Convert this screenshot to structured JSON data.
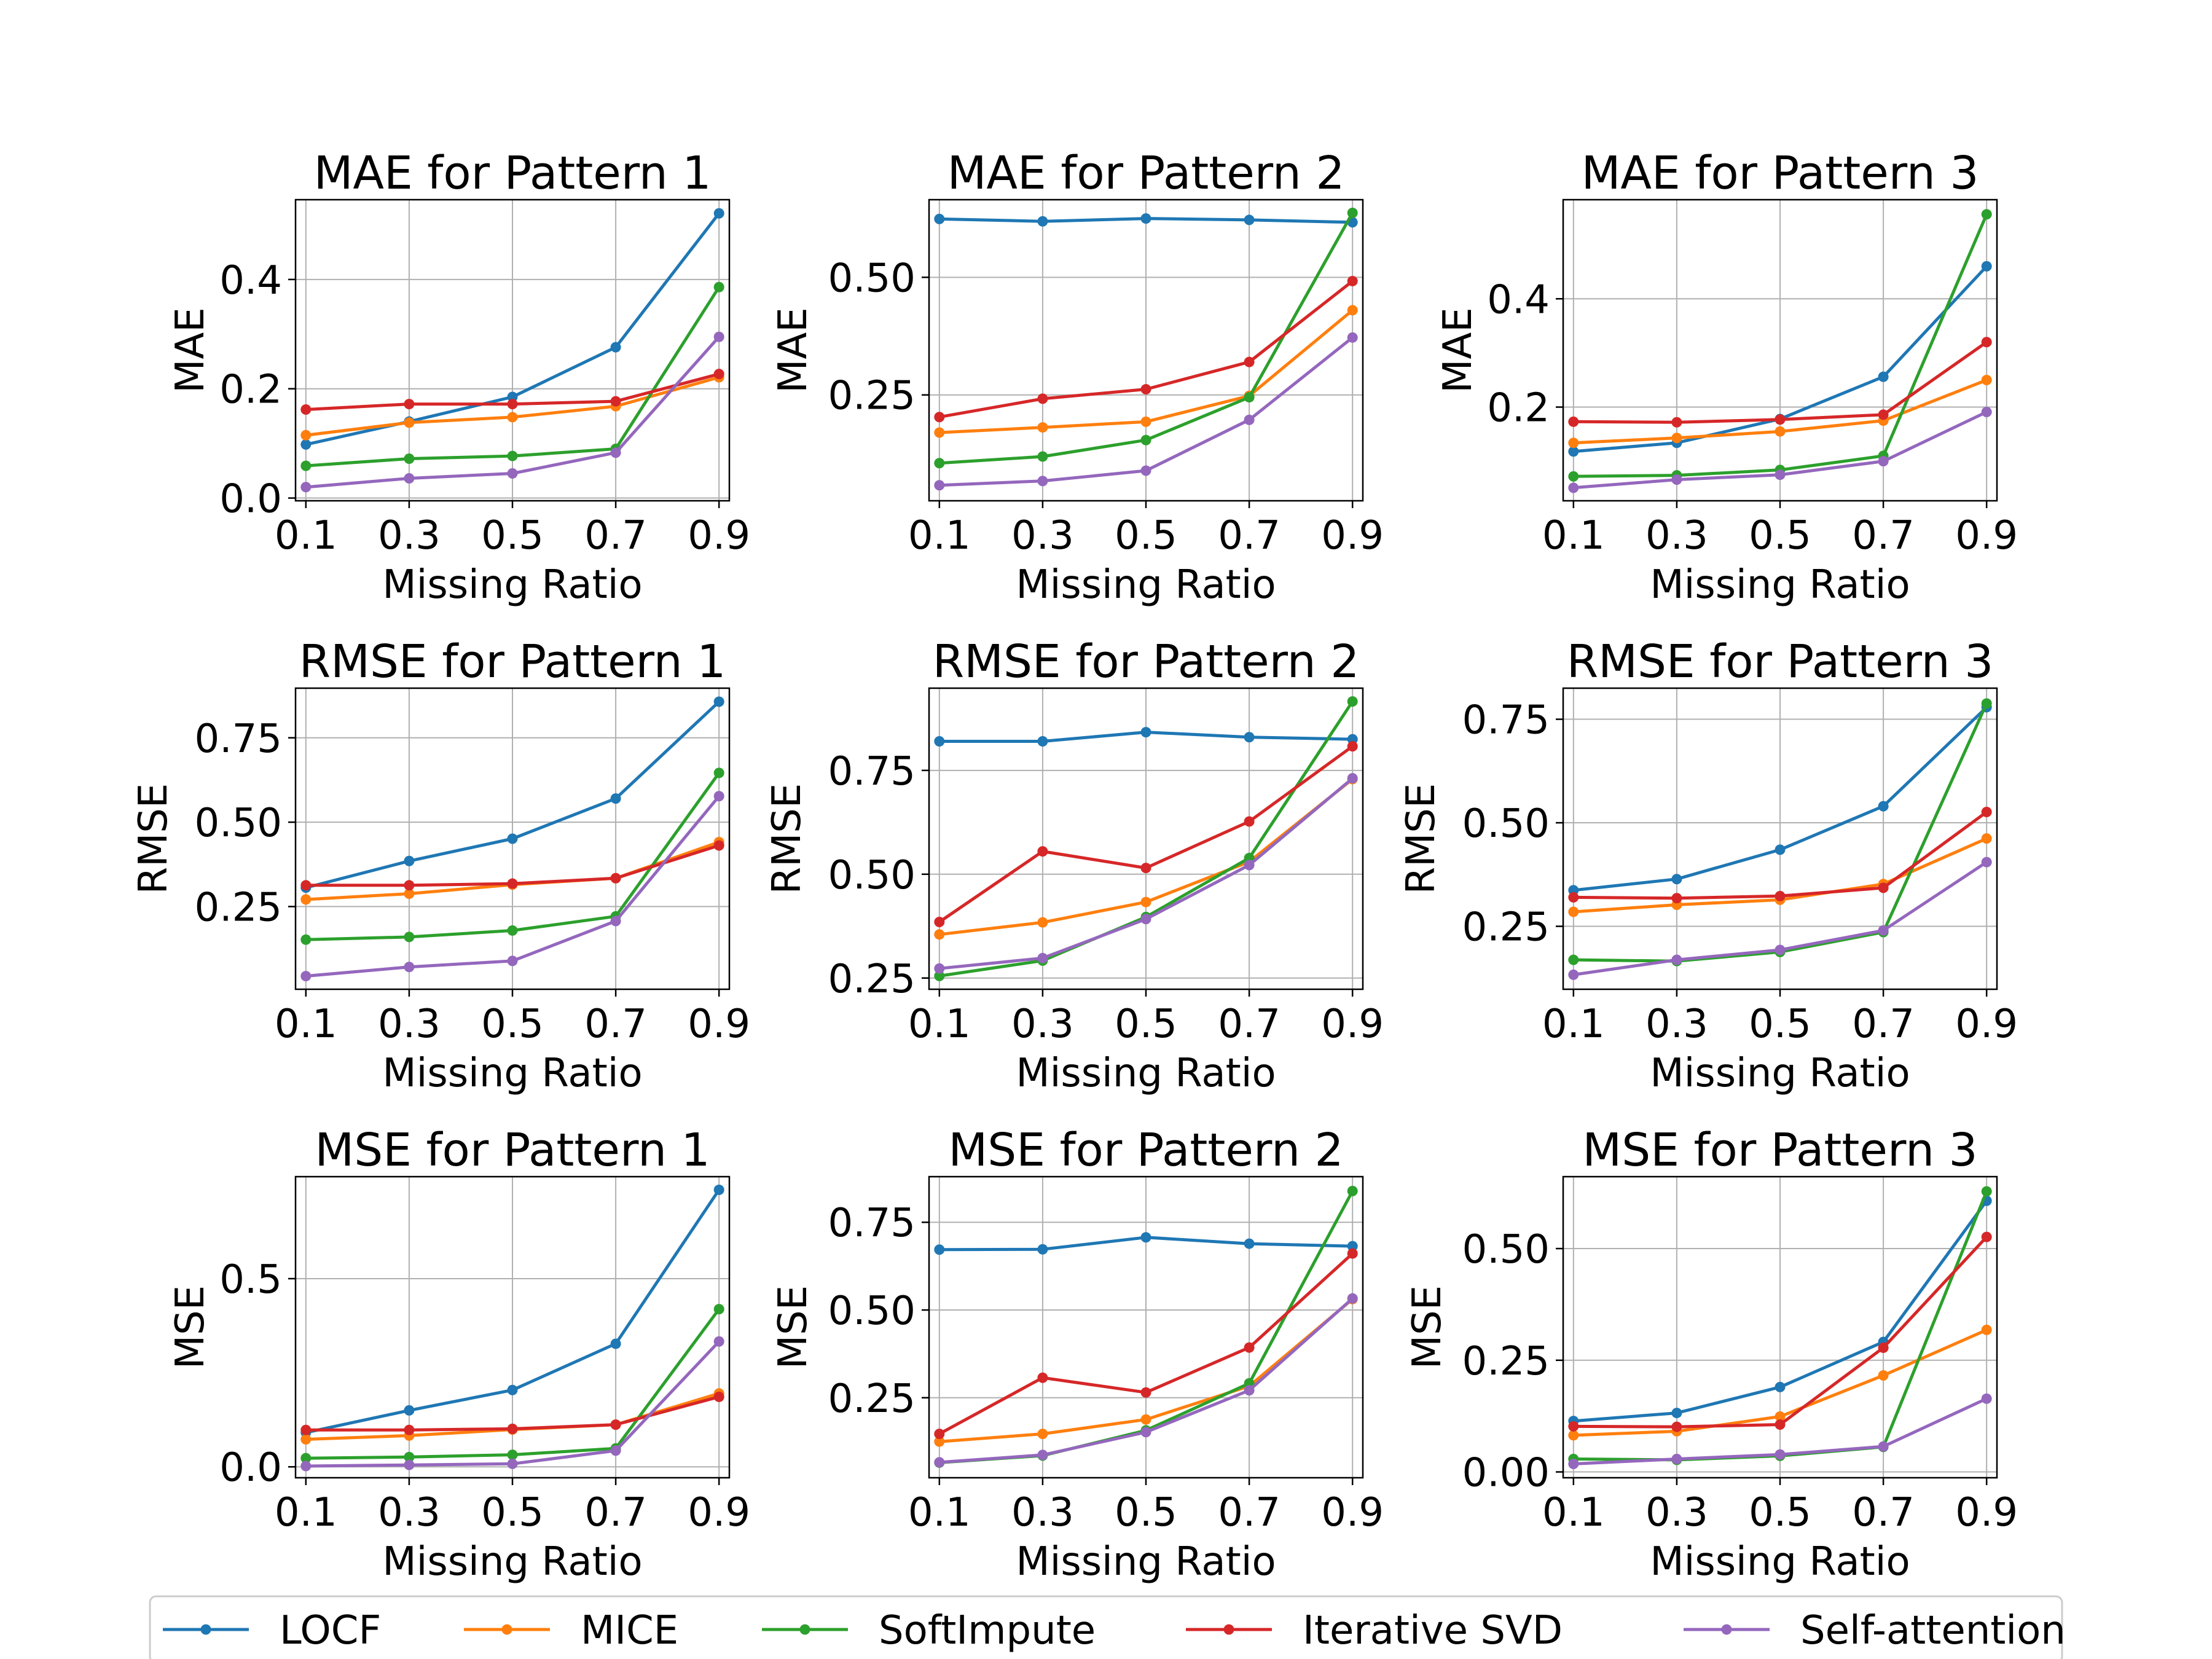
{
  "chart_data": [
    {
      "type": "line",
      "title": "MAE for Pattern 1",
      "xlabel": "Missing Ratio",
      "ylabel": "MAE",
      "x": [
        0.1,
        0.3,
        0.5,
        0.7,
        0.9
      ],
      "xlim": [
        0.08,
        0.92
      ],
      "ylim": [
        -0.005,
        0.546
      ],
      "yticks": [
        0.0,
        0.2,
        0.4
      ],
      "ytick_labels": [
        "0.0",
        "0.2",
        "0.4"
      ],
      "grid": true,
      "series": [
        {
          "name": "LOCF",
          "values": [
            0.098,
            0.14,
            0.185,
            0.276,
            0.521
          ]
        },
        {
          "name": "MICE",
          "values": [
            0.115,
            0.138,
            0.148,
            0.168,
            0.221
          ]
        },
        {
          "name": "SoftImpute",
          "values": [
            0.059,
            0.072,
            0.077,
            0.09,
            0.386
          ]
        },
        {
          "name": "Iterative SVD",
          "values": [
            0.162,
            0.172,
            0.172,
            0.177,
            0.227
          ]
        },
        {
          "name": "Self-attention",
          "values": [
            0.02,
            0.036,
            0.045,
            0.083,
            0.295
          ]
        }
      ]
    },
    {
      "type": "line",
      "title": "MAE for Pattern 2",
      "xlabel": "Missing Ratio",
      "ylabel": "MAE",
      "x": [
        0.1,
        0.3,
        0.5,
        0.7,
        0.9
      ],
      "xlim": [
        0.08,
        0.92
      ],
      "ylim": [
        0.025,
        0.665
      ],
      "yticks": [
        0.25,
        0.5
      ],
      "ytick_labels": [
        "0.25",
        "0.50"
      ],
      "grid": true,
      "series": [
        {
          "name": "LOCF",
          "values": [
            0.624,
            0.619,
            0.625,
            0.622,
            0.617
          ]
        },
        {
          "name": "MICE",
          "values": [
            0.17,
            0.181,
            0.193,
            0.248,
            0.43
          ]
        },
        {
          "name": "SoftImpute",
          "values": [
            0.105,
            0.119,
            0.154,
            0.245,
            0.637
          ]
        },
        {
          "name": "Iterative SVD",
          "values": [
            0.203,
            0.242,
            0.262,
            0.32,
            0.492
          ]
        },
        {
          "name": "Self-attention",
          "values": [
            0.058,
            0.067,
            0.089,
            0.197,
            0.372
          ]
        }
      ]
    },
    {
      "type": "line",
      "title": "MAE for Pattern 3",
      "xlabel": "Missing Ratio",
      "ylabel": "MAE",
      "x": [
        0.1,
        0.3,
        0.5,
        0.7,
        0.9
      ],
      "xlim": [
        0.08,
        0.92
      ],
      "ylim": [
        0.027,
        0.583
      ],
      "yticks": [
        0.2,
        0.4
      ],
      "ytick_labels": [
        "0.2",
        "0.4"
      ],
      "grid": true,
      "series": [
        {
          "name": "LOCF",
          "values": [
            0.118,
            0.134,
            0.178,
            0.256,
            0.46
          ]
        },
        {
          "name": "MICE",
          "values": [
            0.134,
            0.143,
            0.155,
            0.175,
            0.25
          ]
        },
        {
          "name": "SoftImpute",
          "values": [
            0.072,
            0.074,
            0.084,
            0.11,
            0.556
          ]
        },
        {
          "name": "Iterative SVD",
          "values": [
            0.173,
            0.172,
            0.177,
            0.186,
            0.32
          ]
        },
        {
          "name": "Self-attention",
          "values": [
            0.051,
            0.066,
            0.075,
            0.1,
            0.191
          ]
        }
      ]
    },
    {
      "type": "line",
      "title": "RMSE for Pattern 1",
      "xlabel": "Missing Ratio",
      "ylabel": "RMSE",
      "x": [
        0.1,
        0.3,
        0.5,
        0.7,
        0.9
      ],
      "xlim": [
        0.08,
        0.92
      ],
      "ylim": [
        0.005,
        0.897
      ],
      "yticks": [
        0.25,
        0.5,
        0.75
      ],
      "ytick_labels": [
        "0.25",
        "0.50",
        "0.75"
      ],
      "grid": true,
      "series": [
        {
          "name": "LOCF",
          "values": [
            0.306,
            0.385,
            0.451,
            0.57,
            0.857
          ]
        },
        {
          "name": "MICE",
          "values": [
            0.271,
            0.288,
            0.315,
            0.334,
            0.441
          ]
        },
        {
          "name": "SoftImpute",
          "values": [
            0.152,
            0.16,
            0.179,
            0.221,
            0.646
          ]
        },
        {
          "name": "Iterative SVD",
          "values": [
            0.313,
            0.313,
            0.318,
            0.334,
            0.431
          ]
        },
        {
          "name": "Self-attention",
          "values": [
            0.044,
            0.071,
            0.089,
            0.207,
            0.577
          ]
        }
      ]
    },
    {
      "type": "line",
      "title": "RMSE for Pattern 2",
      "xlabel": "Missing Ratio",
      "ylabel": "RMSE",
      "x": [
        0.1,
        0.3,
        0.5,
        0.7,
        0.9
      ],
      "xlim": [
        0.08,
        0.92
      ],
      "ylim": [
        0.223,
        0.948
      ],
      "yticks": [
        0.25,
        0.5,
        0.75
      ],
      "ytick_labels": [
        "0.25",
        "0.50",
        "0.75"
      ],
      "grid": true,
      "series": [
        {
          "name": "LOCF",
          "values": [
            0.82,
            0.82,
            0.842,
            0.83,
            0.825
          ]
        },
        {
          "name": "MICE",
          "values": [
            0.355,
            0.384,
            0.433,
            0.53,
            0.729
          ]
        },
        {
          "name": "SoftImpute",
          "values": [
            0.255,
            0.292,
            0.397,
            0.539,
            0.916
          ]
        },
        {
          "name": "Iterative SVD",
          "values": [
            0.385,
            0.555,
            0.515,
            0.627,
            0.808
          ]
        },
        {
          "name": "Self-attention",
          "values": [
            0.273,
            0.298,
            0.392,
            0.522,
            0.731
          ]
        }
      ]
    },
    {
      "type": "line",
      "title": "RMSE for Pattern 3",
      "xlabel": "Missing Ratio",
      "ylabel": "RMSE",
      "x": [
        0.1,
        0.3,
        0.5,
        0.7,
        0.9
      ],
      "xlim": [
        0.08,
        0.92
      ],
      "ylim": [
        0.098,
        0.825
      ],
      "yticks": [
        0.25,
        0.5,
        0.75
      ],
      "ytick_labels": [
        "0.25",
        "0.50",
        "0.75"
      ],
      "grid": true,
      "series": [
        {
          "name": "LOCF",
          "values": [
            0.337,
            0.364,
            0.435,
            0.54,
            0.779
          ]
        },
        {
          "name": "MICE",
          "values": [
            0.285,
            0.302,
            0.314,
            0.352,
            0.462
          ]
        },
        {
          "name": "SoftImpute",
          "values": [
            0.169,
            0.166,
            0.188,
            0.236,
            0.788
          ]
        },
        {
          "name": "Iterative SVD",
          "values": [
            0.32,
            0.318,
            0.323,
            0.343,
            0.526
          ]
        },
        {
          "name": "Self-attention",
          "values": [
            0.133,
            0.169,
            0.193,
            0.24,
            0.405
          ]
        }
      ]
    },
    {
      "type": "line",
      "title": "MSE for Pattern 1",
      "xlabel": "Missing Ratio",
      "ylabel": "MSE",
      "x": [
        0.1,
        0.3,
        0.5,
        0.7,
        0.9
      ],
      "xlim": [
        0.08,
        0.92
      ],
      "ylim": [
        -0.029,
        0.771
      ],
      "yticks": [
        0.0,
        0.5
      ],
      "ytick_labels": [
        "0.0",
        "0.5"
      ],
      "grid": true,
      "series": [
        {
          "name": "LOCF",
          "values": [
            0.091,
            0.15,
            0.204,
            0.327,
            0.736
          ]
        },
        {
          "name": "MICE",
          "values": [
            0.073,
            0.083,
            0.099,
            0.112,
            0.195
          ]
        },
        {
          "name": "SoftImpute",
          "values": [
            0.023,
            0.026,
            0.032,
            0.049,
            0.419
          ]
        },
        {
          "name": "Iterative SVD",
          "values": [
            0.098,
            0.098,
            0.101,
            0.112,
            0.186
          ]
        },
        {
          "name": "Self-attention",
          "values": [
            0.002,
            0.005,
            0.008,
            0.043,
            0.333
          ]
        }
      ]
    },
    {
      "type": "line",
      "title": "MSE for Pattern 2",
      "xlabel": "Missing Ratio",
      "ylabel": "MSE",
      "x": [
        0.1,
        0.3,
        0.5,
        0.7,
        0.9
      ],
      "xlim": [
        0.08,
        0.92
      ],
      "ylim": [
        0.022,
        0.88
      ],
      "yticks": [
        0.25,
        0.5,
        0.75
      ],
      "ytick_labels": [
        "0.25",
        "0.50",
        "0.75"
      ],
      "grid": true,
      "series": [
        {
          "name": "LOCF",
          "values": [
            0.672,
            0.673,
            0.707,
            0.689,
            0.682
          ]
        },
        {
          "name": "MICE",
          "values": [
            0.125,
            0.147,
            0.188,
            0.283,
            0.531
          ]
        },
        {
          "name": "SoftImpute",
          "values": [
            0.065,
            0.085,
            0.157,
            0.291,
            0.839
          ]
        },
        {
          "name": "Iterative SVD",
          "values": [
            0.147,
            0.307,
            0.265,
            0.393,
            0.661
          ]
        },
        {
          "name": "Self-attention",
          "values": [
            0.066,
            0.087,
            0.152,
            0.271,
            0.533
          ]
        }
      ]
    },
    {
      "type": "line",
      "title": "MSE for Pattern 3",
      "xlabel": "Missing Ratio",
      "ylabel": "MSE",
      "x": [
        0.1,
        0.3,
        0.5,
        0.7,
        0.9
      ],
      "xlim": [
        0.08,
        0.92
      ],
      "ylim": [
        -0.013,
        0.661
      ],
      "yticks": [
        0.0,
        0.25,
        0.5
      ],
      "ytick_labels": [
        "0.00",
        "0.25",
        "0.50"
      ],
      "grid": true,
      "series": [
        {
          "name": "LOCF",
          "values": [
            0.114,
            0.132,
            0.19,
            0.291,
            0.607
          ]
        },
        {
          "name": "MICE",
          "values": [
            0.082,
            0.091,
            0.124,
            0.216,
            0.318
          ]
        },
        {
          "name": "SoftImpute",
          "values": [
            0.029,
            0.027,
            0.036,
            0.056,
            0.628
          ]
        },
        {
          "name": "Iterative SVD",
          "values": [
            0.102,
            0.101,
            0.106,
            0.278,
            0.526
          ]
        },
        {
          "name": "Self-attention",
          "values": [
            0.018,
            0.029,
            0.039,
            0.057,
            0.164
          ]
        }
      ]
    }
  ],
  "legend": {
    "placement": "bottom",
    "entries": [
      {
        "name": "LOCF",
        "color": "#1f77b4"
      },
      {
        "name": "MICE",
        "color": "#ff7f0e"
      },
      {
        "name": "SoftImpute",
        "color": "#2ca02c"
      },
      {
        "name": "Iterative SVD",
        "color": "#d62728"
      },
      {
        "name": "Self-attention",
        "color": "#9467bd"
      }
    ]
  },
  "colors": {
    "grid": "#b0b0b0",
    "axes": "#000000"
  }
}
